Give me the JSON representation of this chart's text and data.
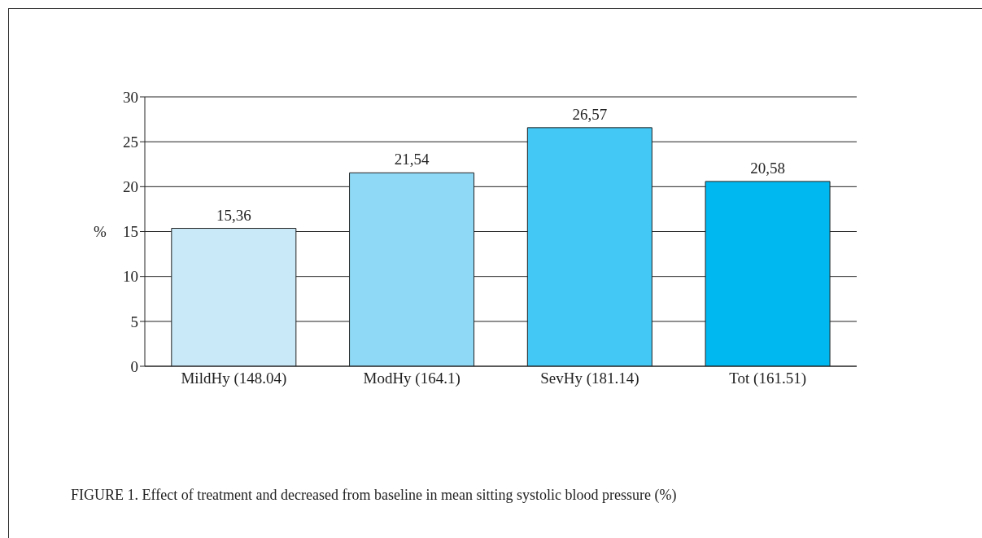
{
  "chart_data": {
    "type": "bar",
    "ylabel": "%",
    "categories": [
      "MildHy (148.04)",
      "ModHy (164.1)",
      "SevHy (181.14)",
      "Tot (161.51)"
    ],
    "values": [
      15.36,
      21.54,
      26.57,
      20.58
    ],
    "value_labels": [
      "15,36",
      "21,54",
      "26,57",
      "20,58"
    ],
    "colors": [
      "#c9e9f8",
      "#8fd9f6",
      "#43c8f5",
      "#00b8f0"
    ],
    "ylim": [
      0,
      30
    ],
    "yticks": [
      0,
      5,
      10,
      15,
      20,
      25,
      30
    ],
    "grid": "y",
    "annotations": [
      "FIGURE 1. Effect of treatment and decreased from baseline in mean sitting systolic blood pressure (%)"
    ]
  }
}
